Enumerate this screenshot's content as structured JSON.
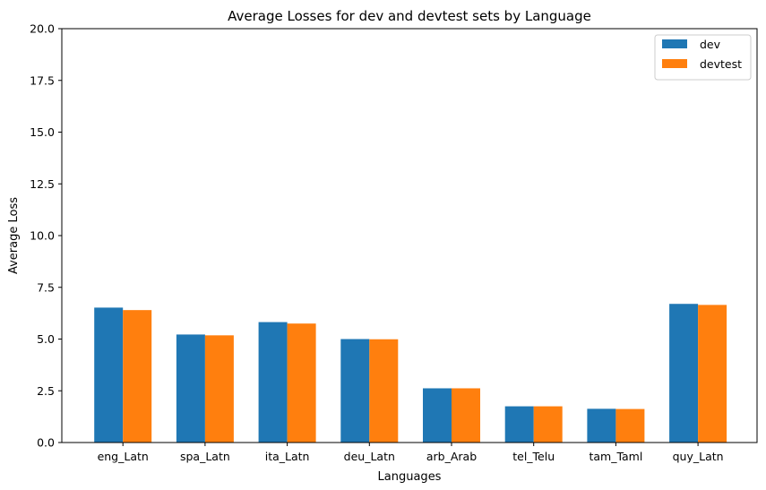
{
  "chart_data": {
    "type": "bar",
    "title": "Average Losses for dev and devtest sets by Language",
    "xlabel": "Languages",
    "ylabel": "Average Loss",
    "categories": [
      "eng_Latn",
      "spa_Latn",
      "ita_Latn",
      "deu_Latn",
      "arb_Arab",
      "tel_Telu",
      "tam_Taml",
      "quy_Latn"
    ],
    "series": [
      {
        "name": "dev",
        "color": "#1f77b4",
        "values": [
          6.52,
          5.22,
          5.82,
          5.0,
          2.62,
          1.75,
          1.63,
          6.7
        ]
      },
      {
        "name": "devtest",
        "color": "#ff7f0e",
        "values": [
          6.4,
          5.18,
          5.75,
          4.99,
          2.62,
          1.75,
          1.62,
          6.65
        ]
      }
    ],
    "ylim": [
      0,
      20
    ],
    "yticks": [
      "0.0",
      "2.5",
      "5.0",
      "7.5",
      "10.0",
      "12.5",
      "15.0",
      "17.5",
      "20.0"
    ],
    "grid": false,
    "legend_position": "top-right"
  }
}
